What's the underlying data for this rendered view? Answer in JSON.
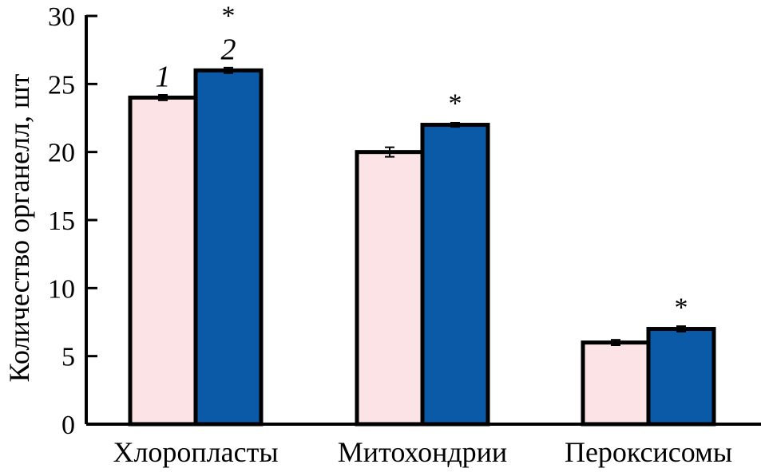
{
  "chart_data": {
    "type": "bar",
    "ylabel": "Количество органелл, шт",
    "xlabel": "",
    "ylim": [
      0,
      30
    ],
    "yticks": [
      0,
      5,
      10,
      15,
      20,
      25,
      30
    ],
    "categories": [
      "Хлоропласты",
      "Митохондрии",
      "Пероксисомы"
    ],
    "series": [
      {
        "name": "1",
        "color": "#fce4e6",
        "values": [
          24,
          20,
          6
        ],
        "errors": [
          0.2,
          0.35,
          0.2
        ]
      },
      {
        "name": "2",
        "color": "#0a5aa8",
        "values": [
          26,
          22,
          7
        ],
        "errors": [
          0.2,
          0.15,
          0.2
        ]
      }
    ],
    "significance_marker": "*",
    "significance": [
      true,
      true,
      true
    ]
  }
}
